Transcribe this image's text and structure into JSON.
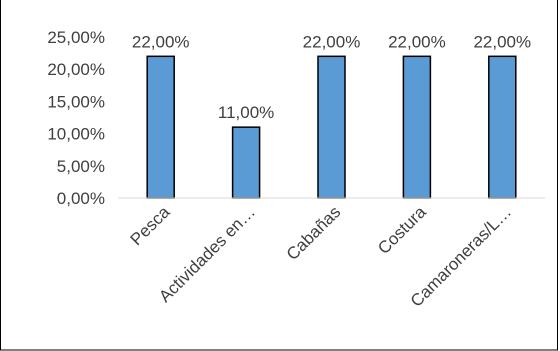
{
  "chart_data": {
    "type": "bar",
    "categories": [
      "Pesca",
      "Actividades en…",
      "Cabañas",
      "Costura",
      "Camaroneras/L…"
    ],
    "values": [
      22.0,
      11.0,
      22.0,
      22.0,
      22.0
    ],
    "data_labels": [
      "22,00%",
      "11,00%",
      "22,00%",
      "22,00%",
      "22,00%"
    ],
    "y_ticks": [
      "0,00%",
      "5,00%",
      "10,00%",
      "15,00%",
      "20,00%",
      "25,00%"
    ],
    "y_tick_values": [
      0,
      5,
      10,
      15,
      20,
      25
    ],
    "ylim": [
      0,
      25
    ],
    "grid": false,
    "legend": "none",
    "bar_color": "#5b9bd5",
    "bar_edge_color": "#000000",
    "title": "",
    "xlabel": "",
    "ylabel": ""
  }
}
